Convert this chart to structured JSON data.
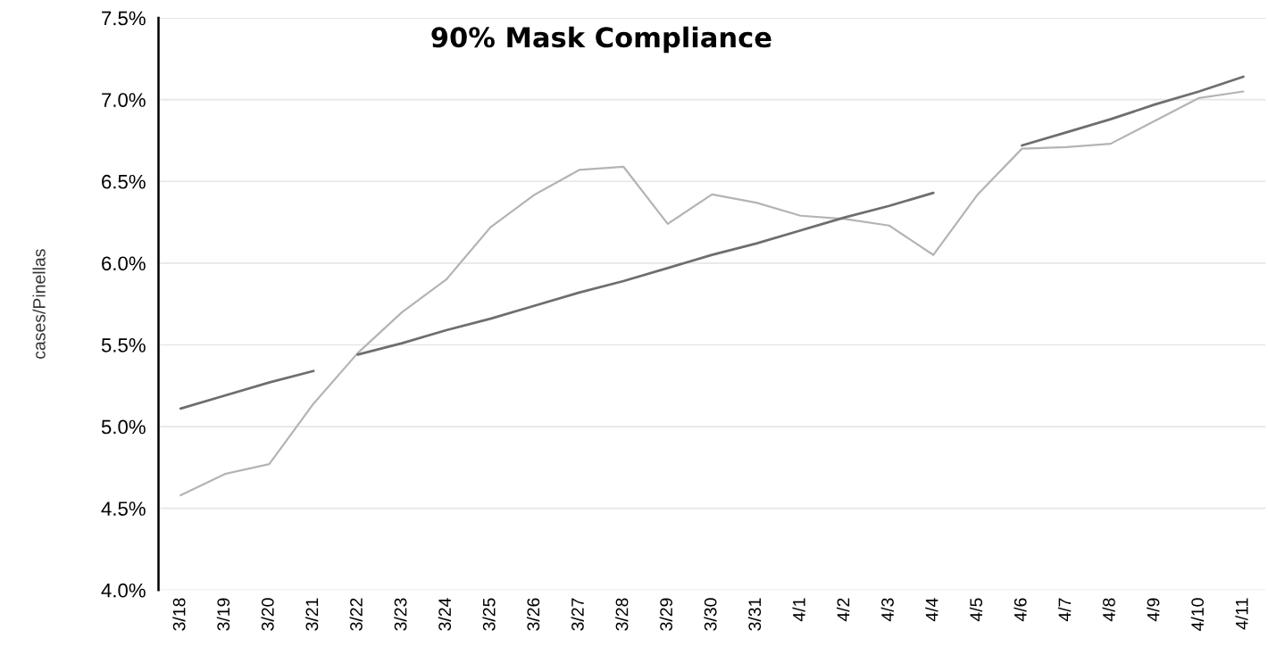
{
  "chart_data": {
    "type": "line",
    "title": "90% Mask Compliance",
    "ylabel": "cases/Pinellas",
    "categories": [
      "3/18",
      "3/19",
      "3/20",
      "3/21",
      "3/22",
      "3/23",
      "3/24",
      "3/25",
      "3/26",
      "3/27",
      "3/28",
      "3/29",
      "3/30",
      "3/31",
      "4/1",
      "4/2",
      "4/3",
      "4/4",
      "4/5",
      "4/6",
      "4/7",
      "4/8",
      "4/9",
      "4/10",
      "4/11"
    ],
    "series": [
      {
        "color": "#b4b4b4",
        "values": [
          4.58,
          4.71,
          4.77,
          5.14,
          5.45,
          5.7,
          5.9,
          6.22,
          6.42,
          6.57,
          6.59,
          6.24,
          6.42,
          6.37,
          6.29,
          6.27,
          6.23,
          6.05,
          6.42,
          6.7,
          6.71,
          6.73,
          6.87,
          7.01,
          7.05
        ]
      },
      {
        "color": "#6e6e6e",
        "values": [
          5.11,
          5.19,
          5.27,
          5.34,
          null,
          null,
          null,
          null,
          null,
          null,
          null,
          null,
          null,
          null,
          null,
          null,
          null,
          null,
          null,
          null,
          null,
          null,
          null,
          null,
          null
        ]
      },
      {
        "color": "#6e6e6e",
        "values": [
          null,
          null,
          null,
          null,
          5.44,
          5.51,
          5.59,
          5.66,
          5.74,
          5.82,
          5.89,
          5.97,
          6.05,
          6.12,
          6.2,
          6.28,
          6.35,
          6.43,
          null,
          null,
          null,
          null,
          null,
          null,
          null
        ]
      },
      {
        "color": "#6e6e6e",
        "values": [
          null,
          null,
          null,
          null,
          null,
          null,
          null,
          null,
          null,
          null,
          null,
          null,
          null,
          null,
          null,
          null,
          null,
          null,
          null,
          6.72,
          6.8,
          6.88,
          6.97,
          7.05,
          7.14
        ]
      }
    ],
    "ylim": [
      4.0,
      7.5
    ],
    "yticks": [
      {
        "value": 4.0,
        "label": "4.0%"
      },
      {
        "value": 4.5,
        "label": "4.5%"
      },
      {
        "value": 5.0,
        "label": "5.0%"
      },
      {
        "value": 5.5,
        "label": "5.5%"
      },
      {
        "value": 6.0,
        "label": "6.0%"
      },
      {
        "value": 6.5,
        "label": "6.5%"
      },
      {
        "value": 7.0,
        "label": "7.0%"
      },
      {
        "value": 7.5,
        "label": "7.5%"
      }
    ],
    "grid": "y"
  }
}
